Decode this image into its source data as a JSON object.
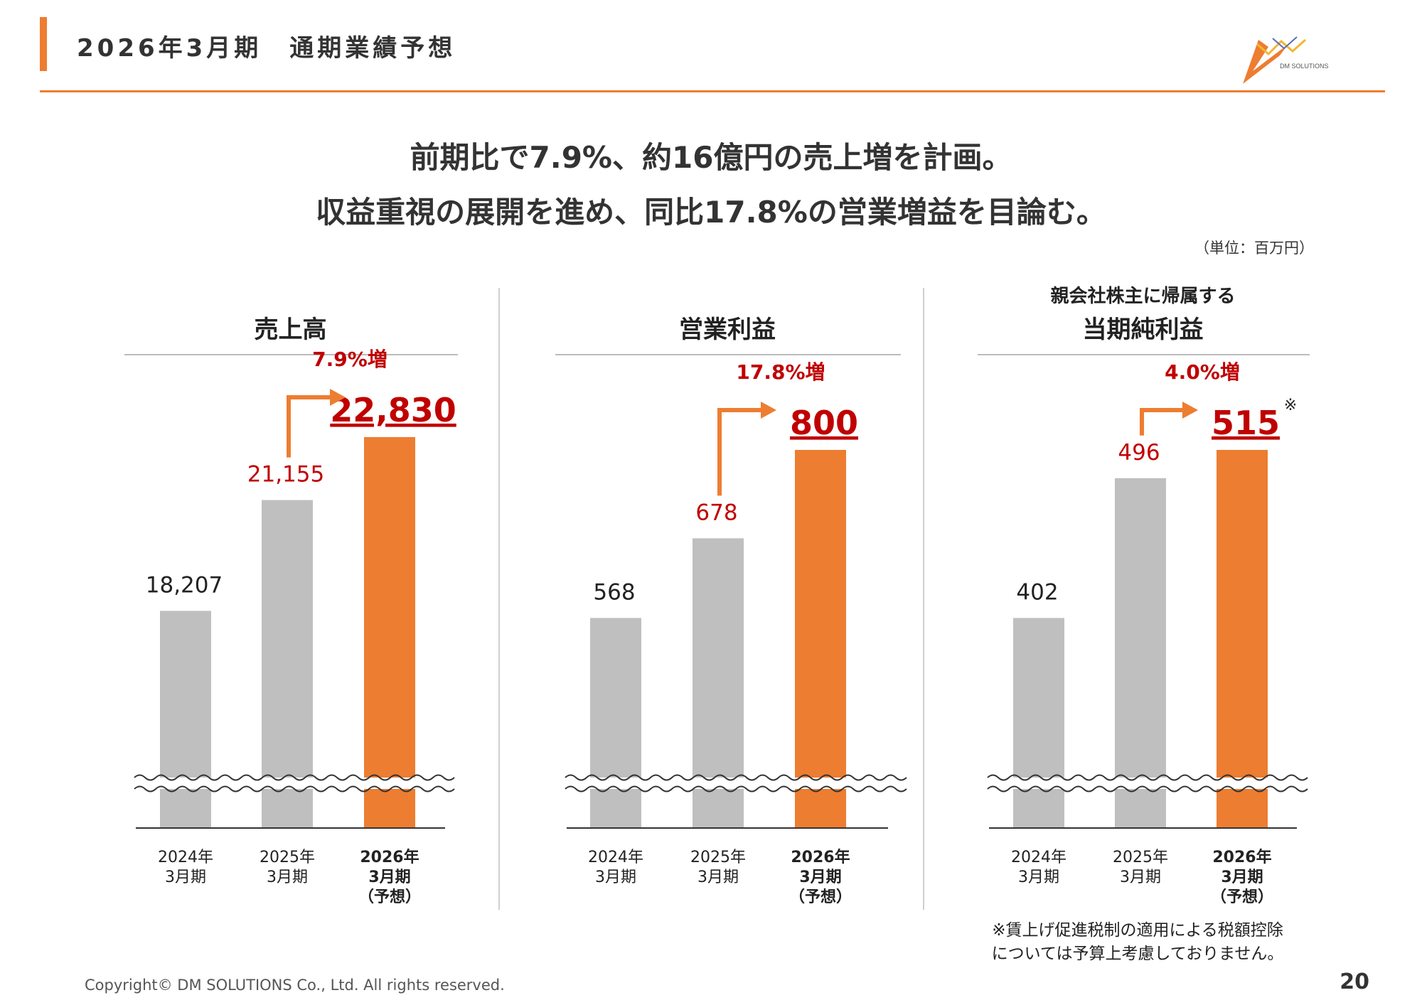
{
  "header": {
    "title": "2026年3月期　通期業績予想",
    "logo_text": "DM SOLUTIONS"
  },
  "headline": {
    "line1": "前期比で7.9%、約16億円の売上増を計画。",
    "line2": "収益重視の展開を進め、同比17.8%の営業増益を目論む。"
  },
  "unit_label": "（単位：百万円）",
  "colors": {
    "accent": "#ed7d31",
    "highlight_text": "#c00000",
    "bar_past": "#bfbfbf",
    "bar_forecast": "#ed7d31"
  },
  "chart_data": [
    {
      "type": "bar",
      "title_line1": "",
      "title_line2": "売上高",
      "categories": [
        [
          "2024年",
          "3月期"
        ],
        [
          "2025年",
          "3月期"
        ],
        [
          "2026年",
          "3月期",
          "（予想）"
        ]
      ],
      "values": [
        18207,
        21155,
        22830
      ],
      "value_labels": [
        "18,207",
        "21,155",
        "22,830"
      ],
      "growth_label": "7.9%増",
      "axis_break": true,
      "footnote_mark": ""
    },
    {
      "type": "bar",
      "title_line1": "",
      "title_line2": "営業利益",
      "categories": [
        [
          "2024年",
          "3月期"
        ],
        [
          "2025年",
          "3月期"
        ],
        [
          "2026年",
          "3月期",
          "（予想）"
        ]
      ],
      "values": [
        568,
        678,
        800
      ],
      "value_labels": [
        "568",
        "678",
        "800"
      ],
      "growth_label": "17.8%増",
      "axis_break": true,
      "footnote_mark": ""
    },
    {
      "type": "bar",
      "title_line1": "親会社株主に帰属する",
      "title_line2": "当期純利益",
      "categories": [
        [
          "2024年",
          "3月期"
        ],
        [
          "2025年",
          "3月期"
        ],
        [
          "2026年",
          "3月期",
          "（予想）"
        ]
      ],
      "values": [
        402,
        496,
        515
      ],
      "value_labels": [
        "402",
        "496",
        "515"
      ],
      "growth_label": "4.0%増",
      "axis_break": true,
      "footnote_mark": "※"
    }
  ],
  "footnote": {
    "line1": "※賃上げ促進税制の適用による税額控除",
    "line2": "については予算上考慮しておりません。"
  },
  "footer": {
    "copyright": "Copyright© DM SOLUTIONS Co., Ltd. All rights reserved.",
    "page_number": "20"
  }
}
